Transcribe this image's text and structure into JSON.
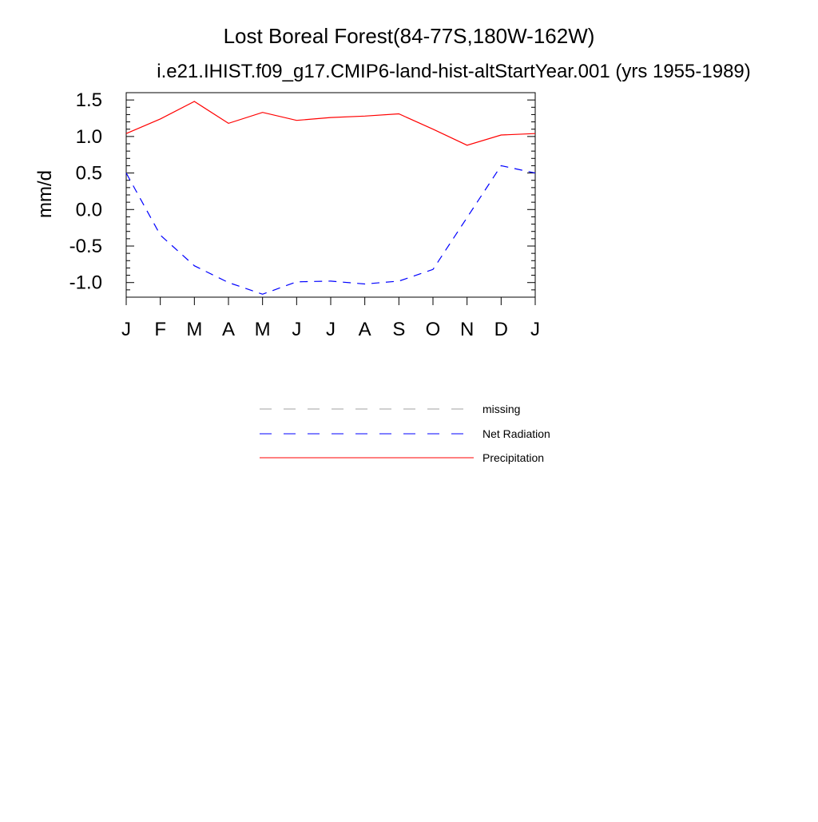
{
  "chart_data": {
    "type": "line",
    "title": "Lost Boreal Forest(84-77S,180W-162W)",
    "subtitle": "i.e21.IHIST.f09_g17.CMIP6-land-hist-altStartYear.001 (yrs 1955-1989)",
    "xlabel": "",
    "ylabel": "mm/d",
    "categories": [
      "J",
      "F",
      "M",
      "A",
      "M",
      "J",
      "J",
      "A",
      "S",
      "O",
      "N",
      "D",
      "J"
    ],
    "ylim": [
      -1.2,
      1.6
    ],
    "yticks": [
      {
        "value": 1.5,
        "label": "1.5"
      },
      {
        "value": 1.0,
        "label": "1.0"
      },
      {
        "value": 0.5,
        "label": "0.5"
      },
      {
        "value": 0.0,
        "label": "0.0"
      },
      {
        "value": -0.5,
        "label": "-0.5"
      },
      {
        "value": -1.0,
        "label": "-1.0"
      }
    ],
    "series": [
      {
        "name": "Precipitation",
        "color": "#ff0000",
        "dash": "solid",
        "values": [
          1.04,
          1.24,
          1.48,
          1.18,
          1.33,
          1.22,
          1.26,
          1.28,
          1.31,
          1.1,
          0.88,
          1.02,
          1.04
        ]
      },
      {
        "name": "Net Radiation",
        "color": "#0000ff",
        "dash": "dashed",
        "values": [
          0.5,
          -0.35,
          -0.77,
          -1.0,
          -1.16,
          -0.99,
          -0.98,
          -1.02,
          -0.98,
          -0.82,
          -0.11,
          0.6,
          0.5
        ]
      }
    ],
    "legend": {
      "placement": "below",
      "entries": [
        {
          "label": "missing",
          "color": "#a0a0a0",
          "dash": "dashed"
        },
        {
          "label": "Net Radiation",
          "color": "#0000ff",
          "dash": "dashed"
        },
        {
          "label": "Precipitation",
          "color": "#ff0000",
          "dash": "solid"
        }
      ]
    },
    "grid": false
  }
}
